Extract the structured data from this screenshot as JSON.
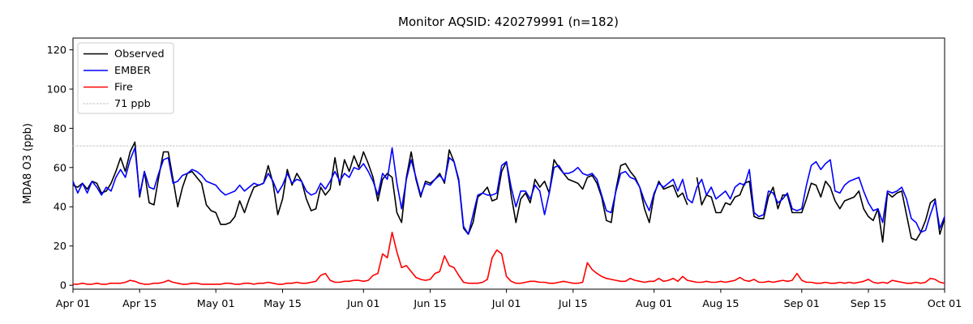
{
  "figure": {
    "background": "#ffffff"
  },
  "chart_data": {
    "type": "line",
    "title": "Monitor AQSID: 420279991 (n=182)",
    "monitor_aqsid": "420279991",
    "n": 182,
    "xlabel": "",
    "ylabel": "MDA8 O3 (ppb)",
    "xlim_days": [
      0,
      183
    ],
    "ylim": [
      -2,
      126
    ],
    "grid": false,
    "x_tick_days": [
      0,
      14,
      30,
      44,
      61,
      75,
      91,
      105,
      122,
      136,
      153,
      167,
      183
    ],
    "x_tick_labels": [
      "Apr 01",
      "Apr 15",
      "May 01",
      "May 15",
      "Jun 01",
      "Jun 15",
      "Jul 01",
      "Jul 15",
      "Aug 01",
      "Aug 15",
      "Sep 01",
      "Sep 15",
      "Oct 01"
    ],
    "y_ticks": [
      0,
      20,
      40,
      60,
      80,
      100,
      120
    ],
    "y_tick_labels": [
      "0",
      "20",
      "40",
      "60",
      "80",
      "100",
      "120"
    ],
    "threshold": {
      "label": "71 ppb",
      "value": 71,
      "color": "#d2d2d2",
      "style": "dotted"
    },
    "legend": {
      "position": "upper left",
      "entries": [
        {
          "label": "Observed",
          "color": "#000000",
          "style": "solid"
        },
        {
          "label": "EMBER",
          "color": "#0000ff",
          "style": "solid"
        },
        {
          "label": "Fire",
          "color": "#ff0000",
          "style": "solid"
        },
        {
          "label": "71 ppb",
          "color": "#d2d2d2",
          "style": "dotted"
        }
      ]
    },
    "series": [
      {
        "name": "Observed",
        "color": "#000000",
        "values": [
          51,
          50,
          52,
          49,
          53,
          52,
          47,
          48,
          52,
          58,
          65,
          58,
          68,
          73,
          45,
          58,
          42,
          41,
          55,
          68,
          68,
          54,
          40,
          50,
          57,
          58,
          55,
          52,
          41,
          38,
          37,
          31,
          31,
          32,
          35,
          43,
          37,
          44,
          50,
          51,
          52,
          61,
          52,
          36,
          44,
          59,
          51,
          57,
          53,
          44,
          38,
          39,
          50,
          46,
          49,
          65,
          51,
          64,
          58,
          66,
          60,
          68,
          62,
          55,
          43,
          54,
          57,
          55,
          37,
          32,
          55,
          68,
          54,
          45,
          53,
          52,
          54,
          57,
          52,
          69,
          63,
          53,
          29,
          26,
          32,
          45,
          47,
          50,
          43,
          44,
          58,
          63,
          46,
          32,
          44,
          47,
          42,
          54,
          50,
          53,
          47,
          64,
          60,
          57,
          54,
          53,
          52,
          49,
          55,
          56,
          52,
          45,
          33,
          32,
          49,
          61,
          62,
          58,
          55,
          50,
          39,
          32,
          46,
          53,
          49,
          50,
          51,
          45,
          47,
          41,
          null,
          55,
          41,
          46,
          45,
          37,
          37,
          42,
          41,
          45,
          46,
          52,
          53,
          35,
          34,
          34,
          45,
          50,
          39,
          46,
          46,
          37,
          37,
          37,
          44,
          52,
          51,
          45,
          53,
          50,
          43,
          39,
          43,
          44,
          45,
          48,
          39,
          35,
          33,
          39,
          22,
          47,
          45,
          47,
          48,
          36,
          24,
          23,
          27,
          33,
          42,
          44,
          26,
          34
        ]
      },
      {
        "name": "EMBER",
        "color": "#0000ff",
        "values": [
          53,
          47,
          52,
          47,
          53,
          50,
          46,
          50,
          48,
          55,
          59,
          55,
          64,
          70,
          46,
          58,
          50,
          49,
          57,
          64,
          65,
          52,
          53,
          56,
          57,
          59,
          58,
          56,
          53,
          52,
          51,
          48,
          46,
          47,
          48,
          51,
          48,
          50,
          52,
          51,
          52,
          57,
          53,
          47,
          51,
          57,
          52,
          54,
          53,
          48,
          46,
          47,
          52,
          49,
          53,
          58,
          53,
          57,
          55,
          60,
          59,
          62,
          58,
          53,
          46,
          57,
          54,
          70,
          52,
          39,
          54,
          64,
          55,
          46,
          52,
          51,
          54,
          56,
          53,
          65,
          63,
          54,
          30,
          26,
          36,
          46,
          47,
          46,
          46,
          47,
          61,
          63,
          50,
          40,
          48,
          48,
          44,
          51,
          48,
          36,
          47,
          60,
          61,
          57,
          57,
          58,
          60,
          57,
          56,
          57,
          54,
          46,
          38,
          37,
          48,
          57,
          58,
          55,
          54,
          50,
          43,
          38,
          47,
          52,
          50,
          52,
          54,
          48,
          54,
          44,
          42,
          50,
          54,
          46,
          50,
          44,
          46,
          48,
          44,
          50,
          52,
          51,
          59,
          37,
          35,
          36,
          48,
          47,
          42,
          44,
          47,
          39,
          38,
          39,
          51,
          61,
          63,
          59,
          62,
          64,
          48,
          47,
          51,
          53,
          54,
          55,
          48,
          42,
          38,
          39,
          32,
          48,
          47,
          48,
          50,
          44,
          34,
          32,
          27,
          28,
          36,
          43,
          29,
          35
        ]
      },
      {
        "name": "Fire",
        "color": "#ff0000",
        "values": [
          0.5,
          0.5,
          1,
          0.5,
          0.5,
          1,
          0.5,
          0.5,
          1,
          1,
          1,
          1.5,
          2.5,
          2,
          1,
          0.5,
          0.5,
          1,
          1,
          1.5,
          2.5,
          1.5,
          1,
          0.5,
          0.5,
          1,
          1,
          0.5,
          0.5,
          0.5,
          0.5,
          0.5,
          1,
          1,
          0.5,
          0.5,
          1,
          1,
          0.5,
          1,
          1,
          1.5,
          1,
          0.5,
          0.5,
          1,
          1,
          1.5,
          1,
          1,
          1.5,
          2,
          5,
          6,
          2.5,
          1.5,
          1.5,
          2,
          2,
          2.5,
          2.5,
          2,
          2.5,
          5,
          6,
          16,
          14,
          27,
          17,
          9,
          10,
          7,
          4,
          3,
          2.5,
          3,
          6,
          7,
          15,
          10,
          9,
          5,
          1.5,
          1,
          1,
          1,
          1.5,
          3,
          14,
          18,
          16,
          4.5,
          2,
          1,
          1,
          1.5,
          2,
          2,
          1.5,
          1.5,
          1,
          1,
          1.5,
          2,
          1.5,
          1,
          1,
          1.5,
          11.5,
          8,
          6,
          4.5,
          3.5,
          3,
          2.5,
          2,
          2,
          3.5,
          2.5,
          2,
          1.5,
          2,
          2,
          3.5,
          2,
          2.5,
          3.5,
          2,
          4.5,
          2.5,
          2,
          1.5,
          1.5,
          2,
          1.5,
          1.5,
          2,
          1.5,
          2,
          2.5,
          4,
          2.5,
          2,
          3,
          1.5,
          1.5,
          2,
          1.5,
          2,
          2.5,
          2,
          2.5,
          6,
          2.5,
          1.5,
          1.5,
          1,
          1,
          1.5,
          1,
          1,
          1.5,
          1,
          1.5,
          1,
          1.5,
          2,
          3,
          1.5,
          1,
          1.5,
          1,
          2.5,
          2,
          1.5,
          1,
          1,
          1.5,
          1,
          1.5,
          3.5,
          3,
          1.5,
          1
        ]
      }
    ]
  }
}
